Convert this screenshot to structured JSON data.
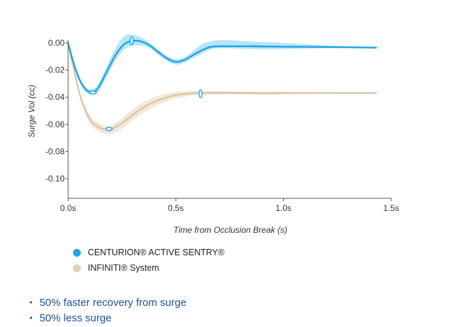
{
  "chart_data": {
    "type": "line",
    "title": "",
    "xlabel": "Time from Occlusion Break (s)",
    "ylabel": "Surge Vol (cc)",
    "xlim": [
      0,
      1.5
    ],
    "ylim": [
      -0.11,
      0.0
    ],
    "x_ticks": [
      0,
      0.5,
      1.0,
      1.5
    ],
    "x_tick_labels": [
      "0.0s",
      "0.5s",
      "1.0s",
      "1.5s"
    ],
    "y_ticks": [
      0.0,
      -0.02,
      -0.04,
      -0.06,
      -0.08,
      -0.1
    ],
    "y_tick_labels": [
      "0.00",
      "-0.02",
      "-0.04",
      "-0.06",
      "-0.08",
      "-0.10"
    ],
    "grid": false,
    "legend_position": "bottom-left",
    "series": [
      {
        "name": "CENTURION® ACTIVE SENTRY®",
        "color": "#1ba6e6",
        "band_color": "#a9dcf5",
        "x": [
          0,
          0.02,
          0.05,
          0.08,
          0.11,
          0.14,
          0.18,
          0.22,
          0.26,
          0.3,
          0.34,
          0.38,
          0.42,
          0.46,
          0.5,
          0.54,
          0.58,
          0.62,
          0.66,
          0.7,
          0.75,
          0.85,
          1.0,
          1.2,
          1.43
        ],
        "values": [
          0.0,
          -0.012,
          -0.026,
          -0.034,
          -0.0365,
          -0.033,
          -0.021,
          -0.009,
          -0.001,
          0.0015,
          0.001,
          -0.002,
          -0.007,
          -0.0115,
          -0.014,
          -0.0125,
          -0.009,
          -0.0055,
          -0.003,
          -0.0025,
          -0.0025,
          -0.0025,
          -0.0028,
          -0.003,
          -0.0035
        ],
        "band_upper": [
          0.0,
          -0.01,
          -0.024,
          -0.032,
          -0.034,
          -0.03,
          -0.017,
          -0.004,
          0.005,
          0.006,
          0.004,
          0.0,
          -0.005,
          -0.0095,
          -0.012,
          -0.0105,
          -0.006,
          -0.001,
          0.001,
          0.002,
          0.002,
          0.001,
          0.0,
          -0.002,
          -0.0035
        ],
        "band_lower": [
          0.0,
          -0.014,
          -0.028,
          -0.036,
          -0.038,
          -0.036,
          -0.025,
          -0.013,
          -0.005,
          -0.002,
          -0.002,
          -0.004,
          -0.009,
          -0.0135,
          -0.016,
          -0.0145,
          -0.011,
          -0.008,
          -0.005,
          -0.004,
          -0.004,
          -0.0045,
          -0.0045,
          -0.004,
          -0.0035
        ]
      },
      {
        "name": "INFINITI® System",
        "color": "#d9c3a1",
        "band_color": "#efe4d2",
        "x": [
          0,
          0.03,
          0.06,
          0.1,
          0.14,
          0.18,
          0.22,
          0.26,
          0.3,
          0.35,
          0.4,
          0.45,
          0.5,
          0.55,
          0.6,
          0.7,
          0.85,
          1.0,
          1.2,
          1.43
        ],
        "values": [
          0.0,
          -0.022,
          -0.041,
          -0.056,
          -0.062,
          -0.0635,
          -0.062,
          -0.058,
          -0.053,
          -0.0475,
          -0.0435,
          -0.0405,
          -0.0385,
          -0.0375,
          -0.037,
          -0.0368,
          -0.037,
          -0.037,
          -0.037,
          -0.037
        ],
        "band_upper": [
          0.0,
          -0.02,
          -0.039,
          -0.053,
          -0.059,
          -0.061,
          -0.059,
          -0.054,
          -0.049,
          -0.0435,
          -0.04,
          -0.0375,
          -0.036,
          -0.0355,
          -0.0355,
          -0.0355,
          -0.036,
          -0.036,
          -0.0365,
          -0.037
        ],
        "band_lower": [
          0.0,
          -0.024,
          -0.043,
          -0.059,
          -0.065,
          -0.067,
          -0.066,
          -0.062,
          -0.057,
          -0.0515,
          -0.047,
          -0.0435,
          -0.041,
          -0.0395,
          -0.0385,
          -0.038,
          -0.038,
          -0.038,
          -0.0375,
          -0.037
        ]
      }
    ],
    "markers": [
      {
        "series": 0,
        "x": 0.115,
        "y": -0.0365
      },
      {
        "series": 0,
        "x": 0.295,
        "y": 0.0015
      },
      {
        "series": 1,
        "x": 0.19,
        "y": -0.0635
      },
      {
        "series": 1,
        "x": 0.615,
        "y": -0.0375
      }
    ]
  },
  "legend": {
    "items": [
      {
        "label": "CENTURION® ACTIVE SENTRY®",
        "color": "#1ba6e6"
      },
      {
        "label": "INFINITI® System",
        "color": "#e0d0b4"
      }
    ]
  },
  "bullets": [
    "50% faster recovery from surge",
    "50% less surge"
  ]
}
